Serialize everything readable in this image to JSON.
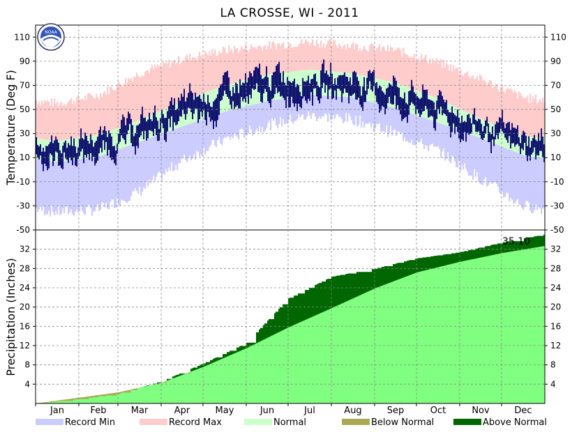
{
  "chart_data": [
    {
      "type": "bar",
      "title": "LA CROSSE, WI - 2011",
      "ylabel": "Temperature (Deg F)",
      "ylim": [
        -50,
        120
      ],
      "yticks": [
        110,
        90,
        70,
        50,
        30,
        10,
        -10,
        -30,
        -50
      ],
      "months": [
        "Jan",
        "Feb",
        "Mar",
        "Apr",
        "May",
        "Jun",
        "Jul",
        "Aug",
        "Sep",
        "Oct",
        "Nov",
        "Dec"
      ],
      "grid": true,
      "legend_position": "bottom",
      "series": [
        {
          "name": "Record Min",
          "color": "#ccccff"
        },
        {
          "name": "Record Max",
          "color": "#ffcccc"
        },
        {
          "name": "Normal",
          "color": "#ccffcc"
        },
        {
          "name": "observed",
          "color": "#000066"
        }
      ],
      "normal_high_by_month": [
        24,
        29,
        41,
        57,
        70,
        79,
        83,
        80,
        72,
        59,
        42,
        28
      ],
      "normal_low_by_month": [
        6,
        11,
        23,
        36,
        48,
        57,
        62,
        60,
        51,
        39,
        26,
        12
      ],
      "record_max_by_month": [
        55,
        62,
        80,
        92,
        99,
        103,
        106,
        103,
        99,
        89,
        75,
        60
      ],
      "record_min_by_month": [
        -35,
        -33,
        -18,
        8,
        25,
        37,
        45,
        42,
        30,
        16,
        -8,
        -30
      ]
    },
    {
      "type": "area",
      "ylabel": "Precipitation (Inches)",
      "ylim": [
        0,
        36
      ],
      "yticks": [
        32,
        28,
        24,
        20,
        16,
        12,
        8,
        4
      ],
      "annotation": "35.10",
      "series": [
        {
          "name": "Normal",
          "color": "#80ff80"
        },
        {
          "name": "Below Normal",
          "color": "#aaaa55"
        },
        {
          "name": "Above Normal",
          "color": "#006600"
        }
      ],
      "normal_cumulative_end_of_month": [
        1.2,
        2.3,
        4.3,
        7.6,
        11.5,
        15.8,
        19.8,
        23.9,
        27.2,
        29.4,
        31.2,
        32.7
      ],
      "actual_cumulative_end_of_month": [
        0.9,
        2.0,
        4.6,
        8.3,
        12.6,
        21.8,
        26.3,
        28.0,
        30.1,
        31.4,
        33.4,
        35.1
      ]
    }
  ],
  "legend": {
    "items": [
      {
        "label": "Record Min",
        "color": "#ccccff"
      },
      {
        "label": "Record Max",
        "color": "#ffcccc"
      },
      {
        "label": "Normal",
        "color": "#ccffcc"
      },
      {
        "label": "Below Normal",
        "color": "#aaaa55"
      },
      {
        "label": "Above Normal",
        "color": "#006600"
      }
    ]
  },
  "logo": {
    "icon": "noaa-logo-icon",
    "text": "NOAA"
  }
}
